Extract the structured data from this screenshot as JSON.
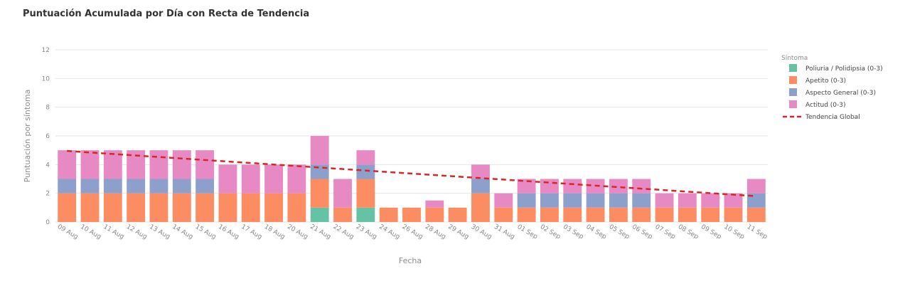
{
  "chart_data": {
    "type": "bar",
    "stacked": true,
    "title": "Puntuación Acumulada por Día con Recta de Tendencia",
    "xlabel": "Fecha",
    "ylabel": "Puntuación por síntoma",
    "ylim": [
      0,
      12
    ],
    "yticks": [
      "0",
      "2",
      "4",
      "6",
      "8",
      "10",
      "12"
    ],
    "grid": true,
    "legend_position": "right",
    "legend_title": "Síntoma",
    "categories": [
      "09 Aug",
      "10 Aug",
      "11 Aug",
      "12 Aug",
      "13 Aug",
      "14 Aug",
      "15 Aug",
      "16 Aug",
      "17 Aug",
      "18 Aug",
      "20 Aug",
      "21 Aug",
      "22 Aug",
      "23 Aug",
      "24 Aug",
      "26 Aug",
      "28 Aug",
      "29 Aug",
      "30 Aug",
      "31 Aug",
      "01 Sep",
      "02 Sep",
      "03 Sep",
      "04 Sep",
      "05 Sep",
      "06 Sep",
      "07 Sep",
      "08 Sep",
      "09 Sep",
      "10 Sep",
      "11 Sep"
    ],
    "series": [
      {
        "name": "Poliuria / Polidipsia (0-3)",
        "color": "#66c2a5",
        "values": [
          0,
          0,
          0,
          0,
          0,
          0,
          0,
          0,
          0,
          0,
          0,
          1,
          0,
          1,
          0,
          0,
          0,
          0,
          0,
          0,
          0,
          0,
          0,
          0,
          0,
          0,
          0,
          0,
          0,
          0,
          0
        ]
      },
      {
        "name": "Apetito (0-3)",
        "color": "#fc8d62",
        "values": [
          2,
          2,
          2,
          2,
          2,
          2,
          2,
          2,
          2,
          2,
          2,
          2,
          1,
          2,
          1,
          1,
          1,
          1,
          2,
          1,
          1,
          1,
          1,
          1,
          1,
          1,
          1,
          1,
          1,
          1,
          1
        ]
      },
      {
        "name": "Aspecto General (0-3)",
        "color": "#8da0cb",
        "values": [
          1,
          1,
          1,
          1,
          1,
          1,
          1,
          0,
          0,
          0,
          0,
          1,
          0,
          1,
          0,
          0,
          0,
          0,
          1,
          0,
          1,
          1,
          1,
          1,
          1,
          1,
          0,
          0,
          0,
          0,
          1
        ]
      },
      {
        "name": "Actitud (0-3)",
        "color": "#e78ac3",
        "values": [
          2,
          2,
          2,
          2,
          2,
          2,
          2,
          2,
          2,
          2,
          2,
          2,
          2,
          1,
          0,
          0,
          0.5,
          0,
          1,
          1,
          1,
          1,
          1,
          1,
          1,
          1,
          1,
          1,
          1,
          1,
          1
        ]
      }
    ],
    "trend": {
      "name": "Tendencia Global",
      "color": "#d62728",
      "start": 4.95,
      "end": 1.8
    }
  }
}
